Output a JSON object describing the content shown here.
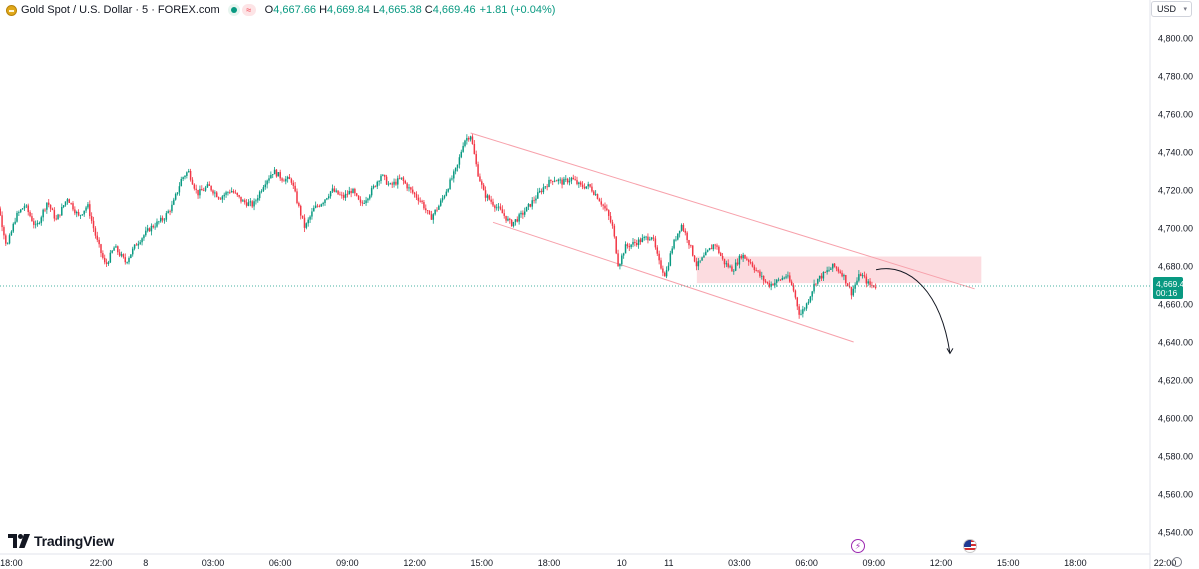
{
  "header": {
    "title": "Gold Spot / U.S. Dollar · 5 · FOREX.com",
    "open_label": "O",
    "open": "4,667.66",
    "high_label": "H",
    "high": "4,669.84",
    "low_label": "L",
    "low": "4,665.38",
    "close_label": "C",
    "close": "4,669.46",
    "change": "+1.81 (+0.04%)",
    "wave_glyph": "≈"
  },
  "currency_button": {
    "label": "USD"
  },
  "brand": {
    "name": "TradingView"
  },
  "price_tag": {
    "price": "4,669.46",
    "countdown": "00:16"
  },
  "colors": {
    "up": "#089981",
    "down": "#f23645",
    "channel": "#f7a1ab",
    "zone": "#fcd6da",
    "tag": "#089981"
  },
  "icons": [
    "gold-icon",
    "market-open-icon",
    "wave-icon",
    "tradingview-logo-icon",
    "bolt-event-icon",
    "us-flag-event-icon",
    "settings-gear-icon"
  ],
  "chart_data": {
    "type": "candlestick",
    "y_range": [
      4530,
      4815
    ],
    "y_ticks": [
      4540,
      4560,
      4580,
      4600,
      4620,
      4640,
      4660,
      4680,
      4700,
      4720,
      4740,
      4760,
      4780,
      4800
    ],
    "y_tick_labels": [
      "4,540.00",
      "4,560.00",
      "4,580.00",
      "4,600.00",
      "4,620.00",
      "4,640.00",
      "4,660.00",
      "4,680.00",
      "4,700.00",
      "4,720.00",
      "4,740.00",
      "4,760.00",
      "4,780.00",
      "4,800.00"
    ],
    "x_ticks": [
      {
        "label": "18:00",
        "hour": -2
      },
      {
        "label": "22:00",
        "hour": 2
      },
      {
        "label": "8",
        "hour": 4
      },
      {
        "label": "03:00",
        "hour": 7
      },
      {
        "label": "06:00",
        "hour": 10
      },
      {
        "label": "09:00",
        "hour": 13
      },
      {
        "label": "12:00",
        "hour": 16
      },
      {
        "label": "15:00",
        "hour": 19
      },
      {
        "label": "18:00",
        "hour": 22
      },
      {
        "label": "10",
        "hour": 25.25
      },
      {
        "label": "11",
        "hour": 27.35
      },
      {
        "label": "03:00",
        "hour": 30.5
      },
      {
        "label": "06:00",
        "hour": 33.5
      },
      {
        "label": "09:00",
        "hour": 36.5
      },
      {
        "label": "12:00",
        "hour": 39.5
      },
      {
        "label": "15:00",
        "hour": 42.5
      },
      {
        "label": "18:00",
        "hour": 45.5
      },
      {
        "label": "22:00",
        "hour": 49.5
      }
    ],
    "last_price": 4669.46,
    "price_path": [
      [
        -3.0,
        4718
      ],
      [
        -2.6,
        4712
      ],
      [
        -2.2,
        4690
      ],
      [
        -1.8,
        4706
      ],
      [
        -1.4,
        4712
      ],
      [
        -0.9,
        4700
      ],
      [
        -0.4,
        4714
      ],
      [
        0.0,
        4704
      ],
      [
        0.5,
        4716
      ],
      [
        1.0,
        4706
      ],
      [
        1.4,
        4712
      ],
      [
        1.8,
        4694
      ],
      [
        2.2,
        4680
      ],
      [
        2.6,
        4690
      ],
      [
        3.1,
        4682
      ],
      [
        3.6,
        4692
      ],
      [
        4.2,
        4700
      ],
      [
        4.8,
        4705
      ],
      [
        5.2,
        4712
      ],
      [
        5.6,
        4726
      ],
      [
        5.9,
        4730
      ],
      [
        6.3,
        4718
      ],
      [
        6.8,
        4722
      ],
      [
        7.3,
        4716
      ],
      [
        7.8,
        4720
      ],
      [
        8.3,
        4714
      ],
      [
        8.8,
        4712
      ],
      [
        9.3,
        4724
      ],
      [
        9.7,
        4730
      ],
      [
        10.1,
        4726
      ],
      [
        10.5,
        4725
      ],
      [
        10.8,
        4712
      ],
      [
        11.1,
        4700
      ],
      [
        11.5,
        4710
      ],
      [
        11.9,
        4714
      ],
      [
        12.3,
        4720
      ],
      [
        12.8,
        4716
      ],
      [
        13.2,
        4720
      ],
      [
        13.6,
        4712
      ],
      [
        14.1,
        4720
      ],
      [
        14.5,
        4728
      ],
      [
        14.9,
        4722
      ],
      [
        15.4,
        4726
      ],
      [
        15.8,
        4720
      ],
      [
        16.3,
        4714
      ],
      [
        16.7,
        4705
      ],
      [
        17.1,
        4712
      ],
      [
        17.5,
        4722
      ],
      [
        17.9,
        4732
      ],
      [
        18.2,
        4746
      ],
      [
        18.5,
        4749
      ],
      [
        18.8,
        4730
      ],
      [
        19.1,
        4718
      ],
      [
        19.5,
        4713
      ],
      [
        19.9,
        4708
      ],
      [
        20.3,
        4702
      ],
      [
        20.7,
        4706
      ],
      [
        21.0,
        4710
      ],
      [
        21.4,
        4716
      ],
      [
        21.8,
        4722
      ],
      [
        22.2,
        4726
      ],
      [
        22.6,
        4724
      ],
      [
        23.0,
        4726
      ],
      [
        23.4,
        4722
      ],
      [
        23.8,
        4722
      ],
      [
        24.2,
        4716
      ],
      [
        24.6,
        4708
      ],
      [
        24.85,
        4700
      ],
      [
        25.1,
        4680
      ],
      [
        25.4,
        4690
      ],
      [
        25.8,
        4692
      ],
      [
        26.2,
        4694
      ],
      [
        26.6,
        4696
      ],
      [
        26.9,
        4682
      ],
      [
        27.2,
        4675
      ],
      [
        27.5,
        4690
      ],
      [
        27.9,
        4702
      ],
      [
        28.2,
        4694
      ],
      [
        28.6,
        4680
      ],
      [
        29.0,
        4686
      ],
      [
        29.4,
        4692
      ],
      [
        29.8,
        4682
      ],
      [
        30.2,
        4678
      ],
      [
        30.6,
        4686
      ],
      [
        31.0,
        4682
      ],
      [
        31.4,
        4675
      ],
      [
        31.8,
        4670
      ],
      [
        32.2,
        4672
      ],
      [
        32.6,
        4675
      ],
      [
        32.9,
        4668
      ],
      [
        33.2,
        4654
      ],
      [
        33.5,
        4660
      ],
      [
        33.9,
        4672
      ],
      [
        34.3,
        4676
      ],
      [
        34.7,
        4680
      ],
      [
        35.1,
        4676
      ],
      [
        35.5,
        4666
      ],
      [
        35.9,
        4676
      ],
      [
        36.3,
        4670
      ],
      [
        36.6,
        4669.46
      ]
    ],
    "annotations": {
      "descending_channel": {
        "upper": [
          [
            18.5,
            4750
          ],
          [
            41.0,
            4668
          ]
        ],
        "lower": [
          [
            19.5,
            4703
          ],
          [
            35.6,
            4640
          ]
        ]
      },
      "resistance_zone": {
        "hour_from": 28.6,
        "hour_to": 41.3,
        "price_from": 4671,
        "price_to": 4685
      },
      "projection_arrow": [
        [
          36.6,
          4678
        ],
        [
          38.1,
          4682
        ],
        [
          39.5,
          4666
        ],
        [
          39.9,
          4634
        ]
      ]
    }
  }
}
